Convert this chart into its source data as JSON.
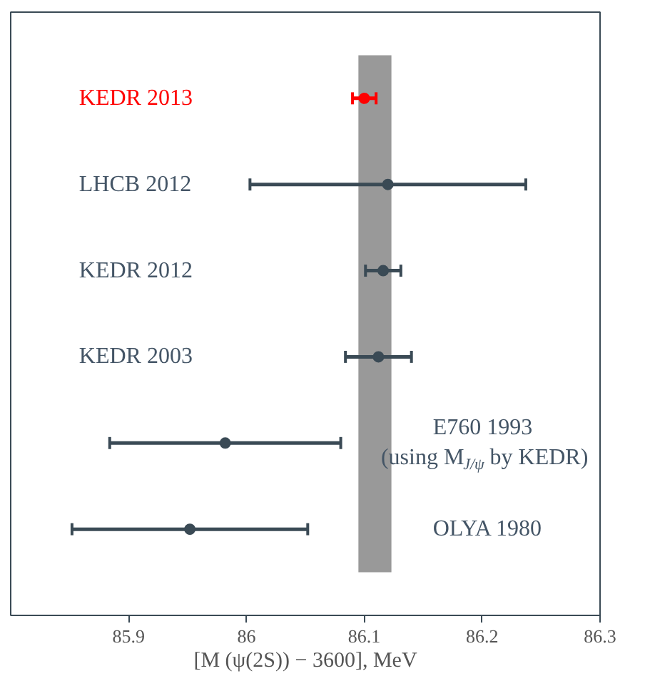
{
  "chart_data": {
    "type": "scatter",
    "orientation": "horizontal",
    "xlabel": "[M (ψ(2S)) − 3600], MeV",
    "categories": [
      "KEDR 2013",
      "LHCB 2012",
      "KEDR 2012",
      "KEDR 2003",
      "E760 1993\n(using M$_{J/ψ}$ by KEDR)",
      "OLYA 1980"
    ],
    "values": [
      86.1,
      86.12,
      86.116,
      86.112,
      85.982,
      85.952
    ],
    "errors": [
      0.01,
      0.117,
      0.015,
      0.028,
      0.098,
      0.1
    ],
    "colors": [
      "#ff0000",
      "#3a4a55",
      "#3a4a55",
      "#3a4a55",
      "#3a4a55",
      "#3a4a55"
    ],
    "xlim": [
      85.8,
      86.3
    ],
    "xticks": [
      85.9,
      86,
      86.1,
      86.2,
      86.3
    ],
    "bands": [
      {
        "axis": "x",
        "from": 86.095,
        "to": 86.123,
        "color": "#999999"
      }
    ],
    "tick_labels": "x",
    "grid": false,
    "marker": "circle"
  }
}
